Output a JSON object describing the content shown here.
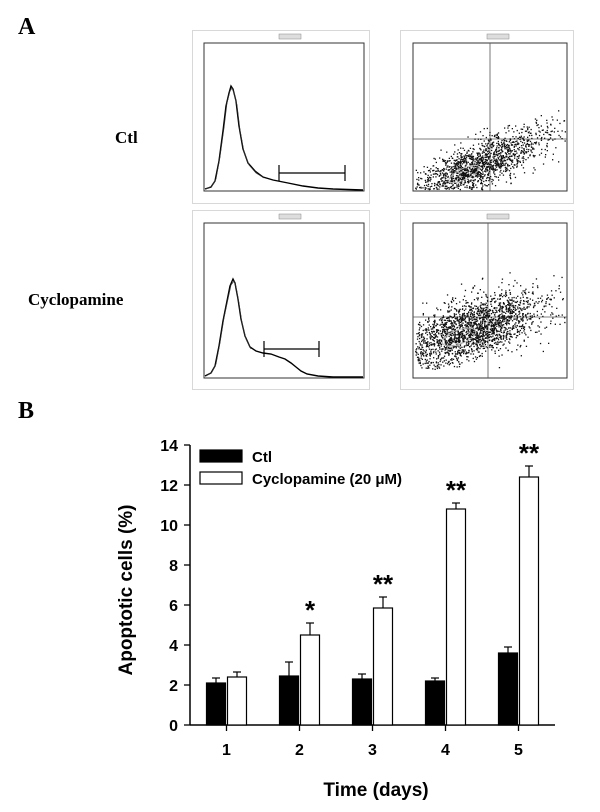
{
  "panel_a": {
    "letter": "A",
    "rows": [
      {
        "label": "Ctl",
        "histogram": {
          "peak_x_decade": 0.8,
          "second_peak": false,
          "gate": [
            1.7,
            3.0
          ]
        }
      },
      {
        "label": "Cyclopamine",
        "histogram": {
          "peak_x_decade": 0.75,
          "second_peak": true,
          "gate": [
            1.3,
            2.5
          ]
        }
      }
    ]
  },
  "panel_b": {
    "letter": "B"
  },
  "chart_data": {
    "type": "bar",
    "categories": [
      "1",
      "2",
      "3",
      "4",
      "5"
    ],
    "series": [
      {
        "name": "Ctl",
        "values": [
          2.1,
          2.45,
          2.3,
          2.2,
          3.6
        ],
        "errors": [
          0.25,
          0.7,
          0.25,
          0.15,
          0.3
        ],
        "color": "#000000"
      },
      {
        "name": "Cyclopamine (20 μM)",
        "values": [
          2.4,
          4.5,
          5.85,
          10.8,
          12.4
        ],
        "errors": [
          0.25,
          0.6,
          0.55,
          0.3,
          0.55
        ],
        "color": "#ffffff"
      }
    ],
    "significance": [
      "",
      "*",
      "**",
      "**",
      "**"
    ],
    "xlabel": "Time (days)",
    "ylabel": "Apoptotic cells (%)",
    "ylim": [
      0,
      14
    ],
    "yticks": [
      "0",
      "2",
      "4",
      "6",
      "8",
      "10",
      "12",
      "14"
    ],
    "grid": false,
    "legend": "top-left"
  }
}
